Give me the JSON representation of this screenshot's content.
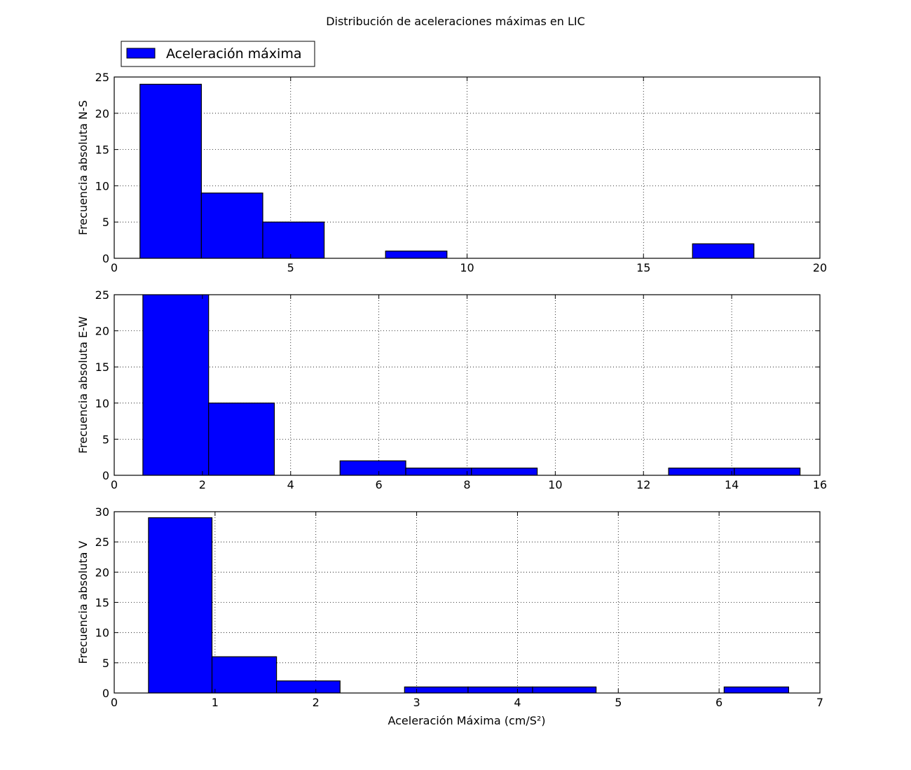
{
  "title": "Distribución de aceleraciones máximas en LIC",
  "xlabel": "Aceleración Máxima (cm/S²)",
  "legend": {
    "label": "Aceleración máxima",
    "placement": "upper-left",
    "color": "#0000ff"
  },
  "colors": {
    "bar": "#0000ff",
    "edge": "#000000",
    "grid": "#000000"
  },
  "chart_data": [
    {
      "type": "bar",
      "ylabel": "Frecuencia absoluta N-S",
      "xlim": [
        0,
        20
      ],
      "ylim": [
        0,
        25
      ],
      "grid": true,
      "xticks": [
        0,
        5,
        10,
        15,
        20
      ],
      "yticks": [
        0,
        5,
        10,
        15,
        20,
        25
      ],
      "bins": [
        {
          "x0": 0.73,
          "x1": 2.47,
          "count": 24
        },
        {
          "x0": 2.47,
          "x1": 4.21,
          "count": 9
        },
        {
          "x0": 4.21,
          "x1": 5.95,
          "count": 5
        },
        {
          "x0": 5.95,
          "x1": 7.69,
          "count": 0
        },
        {
          "x0": 7.69,
          "x1": 9.43,
          "count": 1
        },
        {
          "x0": 9.43,
          "x1": 11.17,
          "count": 0
        },
        {
          "x0": 11.17,
          "x1": 12.91,
          "count": 0
        },
        {
          "x0": 12.91,
          "x1": 14.65,
          "count": 0
        },
        {
          "x0": 14.65,
          "x1": 16.39,
          "count": 0
        },
        {
          "x0": 16.39,
          "x1": 18.13,
          "count": 2
        }
      ]
    },
    {
      "type": "bar",
      "ylabel": "Frecuencia absoluta E-W",
      "xlim": [
        0,
        16
      ],
      "ylim": [
        0,
        25
      ],
      "grid": true,
      "xticks": [
        0,
        2,
        4,
        6,
        8,
        10,
        12,
        14,
        16
      ],
      "yticks": [
        0,
        5,
        10,
        15,
        20,
        25
      ],
      "bins": [
        {
          "x0": 0.65,
          "x1": 2.14,
          "count": 26
        },
        {
          "x0": 2.14,
          "x1": 3.63,
          "count": 10
        },
        {
          "x0": 3.63,
          "x1": 5.12,
          "count": 0
        },
        {
          "x0": 5.12,
          "x1": 6.61,
          "count": 2
        },
        {
          "x0": 6.61,
          "x1": 8.1,
          "count": 1
        },
        {
          "x0": 8.1,
          "x1": 9.59,
          "count": 1
        },
        {
          "x0": 9.59,
          "x1": 11.08,
          "count": 0
        },
        {
          "x0": 11.08,
          "x1": 12.57,
          "count": 0
        },
        {
          "x0": 12.57,
          "x1": 14.06,
          "count": 1
        },
        {
          "x0": 14.06,
          "x1": 15.55,
          "count": 1
        }
      ]
    },
    {
      "type": "bar",
      "ylabel": "Frecuencia absoluta V",
      "xlim": [
        0,
        7
      ],
      "ylim": [
        0,
        30
      ],
      "grid": true,
      "xticks": [
        0,
        1,
        2,
        3,
        4,
        5,
        6,
        7
      ],
      "yticks": [
        0,
        5,
        10,
        15,
        20,
        25,
        30
      ],
      "bins": [
        {
          "x0": 0.34,
          "x1": 0.97,
          "count": 29
        },
        {
          "x0": 0.97,
          "x1": 1.61,
          "count": 6
        },
        {
          "x0": 1.61,
          "x1": 2.24,
          "count": 2
        },
        {
          "x0": 2.24,
          "x1": 2.88,
          "count": 0
        },
        {
          "x0": 2.88,
          "x1": 3.51,
          "count": 1
        },
        {
          "x0": 3.51,
          "x1": 4.15,
          "count": 1
        },
        {
          "x0": 4.15,
          "x1": 4.78,
          "count": 1
        },
        {
          "x0": 4.78,
          "x1": 5.42,
          "count": 0
        },
        {
          "x0": 5.42,
          "x1": 6.05,
          "count": 0
        },
        {
          "x0": 6.05,
          "x1": 6.69,
          "count": 1
        }
      ]
    }
  ]
}
